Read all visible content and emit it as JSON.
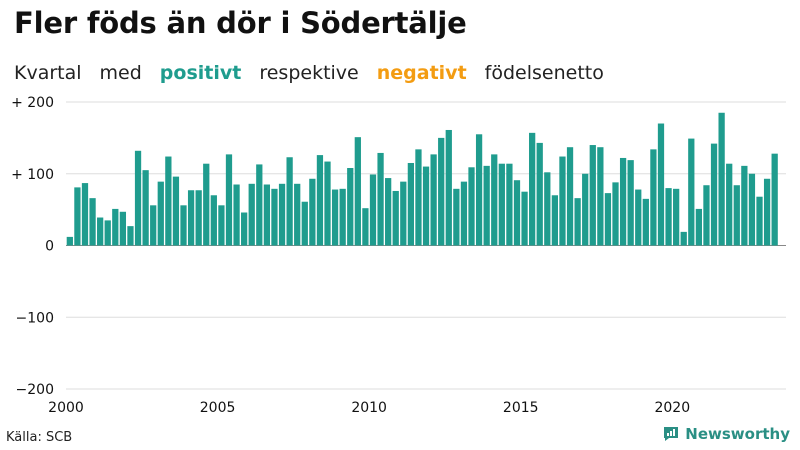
{
  "header": {
    "title": "Fler föds än dör i Södertälje",
    "subtitle": {
      "part1": "Kvartal",
      "part2": "med",
      "positive": "positivt",
      "part3": "respektive",
      "negative": "negativt",
      "part4": "födelsenetto"
    }
  },
  "footer": {
    "source": "Källa: SCB",
    "brand": "Newsworthy"
  },
  "colors": {
    "positive": "#1f9c8e",
    "negative": "#f39c12",
    "brand": "#2a8f84"
  },
  "chart_data": {
    "type": "bar",
    "title": "Fler föds än dör i Södertälje",
    "xlabel": "",
    "ylabel": "",
    "xlim": [
      2000,
      2023.75
    ],
    "ylim": [
      -200,
      200
    ],
    "grid": true,
    "y_ticks": [
      200,
      100,
      0,
      -100,
      -200
    ],
    "y_tick_labels": [
      "+ 200",
      "+ 100",
      "0",
      "−100",
      "−200"
    ],
    "x_ticks": [
      2000,
      2005,
      2010,
      2015,
      2020
    ],
    "x_tick_labels": [
      "2000",
      "2005",
      "2010",
      "2015",
      "2020"
    ],
    "period": "quarter",
    "start": "2000-Q1",
    "values": [
      12,
      81,
      87,
      66,
      39,
      35,
      51,
      47,
      27,
      132,
      105,
      56,
      89,
      124,
      96,
      56,
      77,
      77,
      114,
      70,
      56,
      127,
      85,
      46,
      86,
      113,
      85,
      79,
      86,
      123,
      86,
      61,
      93,
      126,
      117,
      78,
      79,
      108,
      151,
      52,
      99,
      129,
      94,
      76,
      89,
      115,
      134,
      110,
      127,
      150,
      161,
      79,
      89,
      109,
      155,
      111,
      127,
      114,
      114,
      91,
      75,
      157,
      143,
      102,
      70,
      124,
      137,
      66,
      100,
      140,
      137,
      73,
      88,
      122,
      119,
      78,
      65,
      134,
      170,
      80,
      79,
      19,
      149,
      51,
      84,
      142,
      185,
      114,
      84,
      111,
      100,
      68,
      93,
      128
    ]
  }
}
